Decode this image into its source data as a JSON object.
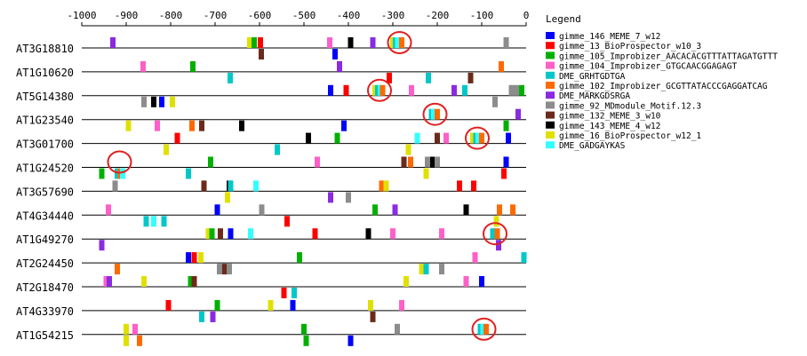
{
  "chart_data": {
    "type": "motif-map",
    "x_axis": {
      "range": [
        -1000,
        0
      ],
      "ticks": [
        -1000,
        -900,
        -800,
        -700,
        -600,
        -500,
        -400,
        -300,
        -200,
        -100,
        0
      ],
      "tick_labels": [
        "-1000",
        "-900",
        "-800",
        "-700",
        "-600",
        "-500",
        "-400",
        "-300",
        "-200",
        "-100",
        "0"
      ]
    },
    "legend": {
      "title": "Legend",
      "items": [
        {
          "id": "m146",
          "label": "gimme_146_MEME_7_w12",
          "color": "#0000ff"
        },
        {
          "id": "m13",
          "label": "gimme_13_BioProspector_w10_3",
          "color": "#ff0000"
        },
        {
          "id": "m105",
          "label": "gimme_105_Improbizer_AACACACGTTTATTAGATGTTT",
          "color": "#00b000"
        },
        {
          "id": "m104",
          "label": "gimme_104_Improbizer_GTGCAACGGAGAGT",
          "color": "#ff5fc8"
        },
        {
          "id": "grht",
          "label": "DME_GRHTGDTGA",
          "color": "#00c8c8"
        },
        {
          "id": "m102",
          "label": "gimme_102_Improbizer_GCGTTATACCCGAGGATCAG",
          "color": "#ff6a00"
        },
        {
          "id": "markg",
          "label": "DME_MARKGDSRGA",
          "color": "#8a2be2"
        },
        {
          "id": "m92",
          "label": "gimme_92_MDmodule_Motif.12.3",
          "color": "#8c8c8c"
        },
        {
          "id": "m132",
          "label": "gimme_132_MEME_3_w10",
          "color": "#6b2a1a"
        },
        {
          "id": "m143",
          "label": "gimme_143_MEME_4_w12",
          "color": "#000000"
        },
        {
          "id": "m16",
          "label": "gimme_16_BioProspector_w12_1",
          "color": "#e0e000"
        },
        {
          "id": "gadg",
          "label": "DME_GADGAYKAS",
          "color": "#33ffff"
        }
      ]
    },
    "genes": [
      {
        "name": "AT3G18810",
        "circles": [
          -285
        ],
        "upper": [
          [
            "markg",
            -930
          ],
          [
            "m16",
            -622
          ],
          [
            "m105",
            -612
          ],
          [
            "m13",
            -598
          ],
          [
            "m104",
            -442
          ],
          [
            "m143",
            -395
          ],
          [
            "markg",
            -345
          ],
          [
            "m16",
            -300
          ],
          [
            "grht",
            -294
          ],
          [
            "gadg",
            -289
          ],
          [
            "m102",
            -280
          ],
          [
            "m92",
            -45
          ]
        ],
        "lower": [
          [
            "m132",
            -596
          ],
          [
            "m146",
            -430
          ]
        ]
      },
      {
        "name": "AT1G10620",
        "circles": [],
        "upper": [
          [
            "m104",
            -862
          ],
          [
            "m105",
            -750
          ],
          [
            "markg",
            -420
          ],
          [
            "m102",
            -56
          ]
        ],
        "lower": [
          [
            "grht",
            -666
          ],
          [
            "m13",
            -308
          ],
          [
            "grht",
            -220
          ],
          [
            "m132",
            -125
          ]
        ]
      },
      {
        "name": "AT5G14380",
        "circles": [
          -330
        ],
        "upper": [
          [
            "m146",
            -440
          ],
          [
            "m13",
            -405
          ],
          [
            "m16",
            -340
          ],
          [
            "grht",
            -334
          ],
          [
            "gadg",
            -328
          ],
          [
            "m102",
            -323
          ],
          [
            "m104",
            -258
          ],
          [
            "markg",
            -162
          ],
          [
            "grht",
            -138
          ],
          [
            "m92",
            -33
          ],
          [
            "m92",
            -22
          ],
          [
            "m105",
            -10
          ]
        ],
        "lower": [
          [
            "m92",
            -860
          ],
          [
            "m143",
            -838
          ],
          [
            "m146",
            -820
          ],
          [
            "m16",
            -796
          ],
          [
            "m92",
            -70
          ]
        ]
      },
      {
        "name": "AT1G23540",
        "circles": [
          -205
        ],
        "upper": [
          [
            "grht",
            -213
          ],
          [
            "gadg",
            -208
          ],
          [
            "m102",
            -200
          ],
          [
            "markg",
            -18
          ]
        ],
        "lower": [
          [
            "m104",
            -830
          ],
          [
            "m102",
            -752
          ],
          [
            "m132",
            -730
          ],
          [
            "m16",
            -895
          ],
          [
            "m143",
            -640
          ],
          [
            "m146",
            -410
          ],
          [
            "m105",
            -45
          ]
        ]
      },
      {
        "name": "AT3G01700",
        "circles": [
          -110
        ],
        "upper": [
          [
            "m13",
            -785
          ],
          [
            "m143",
            -490
          ],
          [
            "m105",
            -425
          ],
          [
            "gadg",
            -245
          ],
          [
            "m132",
            -200
          ],
          [
            "m104",
            -180
          ],
          [
            "m16",
            -120
          ],
          [
            "grht",
            -113
          ],
          [
            "gadg",
            -108
          ],
          [
            "m102",
            -100
          ],
          [
            "m146",
            -40
          ]
        ],
        "lower": [
          [
            "m16",
            -810
          ],
          [
            "grht",
            -560
          ],
          [
            "m16",
            -265
          ]
        ]
      },
      {
        "name": "AT1G24520",
        "circles": [
          -915
        ],
        "upper": [
          [
            "m105",
            -710
          ],
          [
            "m104",
            -470
          ],
          [
            "m132",
            -275
          ],
          [
            "m102",
            -260
          ],
          [
            "m92",
            -222
          ],
          [
            "m143",
            -210
          ],
          [
            "m92",
            -200
          ],
          [
            "m146",
            -45
          ]
        ],
        "lower": [
          [
            "m105",
            -955
          ],
          [
            "grht",
            -920
          ],
          [
            "m102",
            -913
          ],
          [
            "gadg",
            -908
          ],
          [
            "grht",
            -760
          ],
          [
            "m16",
            -225
          ],
          [
            "m13",
            -50
          ]
        ]
      },
      {
        "name": "AT3G57690",
        "circles": [],
        "upper": [
          [
            "m92",
            -925
          ],
          [
            "m132",
            -725
          ],
          [
            "m143",
            -668
          ],
          [
            "grht",
            -665
          ],
          [
            "gadg",
            -608
          ],
          [
            "m102",
            -325
          ],
          [
            "m16",
            -315
          ],
          [
            "m13",
            -150
          ],
          [
            "m13",
            -118
          ]
        ],
        "lower": [
          [
            "m16",
            -672
          ],
          [
            "markg",
            -440
          ],
          [
            "m92",
            -400
          ]
        ]
      },
      {
        "name": "AT4G34440",
        "circles": [],
        "upper": [
          [
            "m104",
            -940
          ],
          [
            "m146",
            -695
          ],
          [
            "m92",
            -595
          ],
          [
            "m105",
            -340
          ],
          [
            "markg",
            -295
          ],
          [
            "m143",
            -135
          ],
          [
            "m102",
            -60
          ],
          [
            "m102",
            -30
          ]
        ],
        "lower": [
          [
            "grht",
            -855
          ],
          [
            "gadg",
            -838
          ],
          [
            "grht",
            -815
          ],
          [
            "m13",
            -538
          ],
          [
            "m16",
            -67
          ]
        ]
      },
      {
        "name": "AT1G49270",
        "circles": [
          -70
        ],
        "upper": [
          [
            "m16",
            -715
          ],
          [
            "m105",
            -707
          ],
          [
            "m132",
            -688
          ],
          [
            "m146",
            -665
          ],
          [
            "gadg",
            -620
          ],
          [
            "m13",
            -475
          ],
          [
            "m143",
            -355
          ],
          [
            "m104",
            -300
          ],
          [
            "m104",
            -190
          ],
          [
            "grht",
            -75
          ],
          [
            "m102",
            -65
          ]
        ],
        "lower": [
          [
            "markg",
            -955
          ],
          [
            "markg",
            -62
          ]
        ]
      },
      {
        "name": "AT2G24450",
        "circles": [],
        "upper": [
          [
            "m146",
            -760
          ],
          [
            "m13",
            -747
          ],
          [
            "m16",
            -732
          ],
          [
            "m105",
            -510
          ],
          [
            "m104",
            -115
          ],
          [
            "grht",
            -5
          ]
        ],
        "lower": [
          [
            "m102",
            -920
          ],
          [
            "m92",
            -690
          ],
          [
            "m132",
            -678
          ],
          [
            "m92",
            -668
          ],
          [
            "m16",
            -235
          ],
          [
            "grht",
            -225
          ],
          [
            "m92",
            -190
          ]
        ]
      },
      {
        "name": "AT2G18470",
        "circles": [],
        "upper": [
          [
            "m104",
            -945
          ],
          [
            "markg",
            -938
          ],
          [
            "m16",
            -860
          ],
          [
            "m105",
            -755
          ],
          [
            "m132",
            -747
          ],
          [
            "m16",
            -270
          ],
          [
            "m104",
            -135
          ],
          [
            "m146",
            -100
          ]
        ],
        "lower": [
          [
            "m13",
            -545
          ],
          [
            "grht",
            -522
          ]
        ]
      },
      {
        "name": "AT4G33970",
        "circles": [],
        "upper": [
          [
            "m13",
            -805
          ],
          [
            "m105",
            -695
          ],
          [
            "m16",
            -575
          ],
          [
            "m146",
            -525
          ],
          [
            "m16",
            -350
          ],
          [
            "m104",
            -280
          ]
        ],
        "lower": [
          [
            "grht",
            -730
          ],
          [
            "markg",
            -705
          ],
          [
            "m132",
            -345
          ]
        ]
      },
      {
        "name": "AT1G54215",
        "circles": [
          -95
        ],
        "upper": [
          [
            "m16",
            -900
          ],
          [
            "m104",
            -880
          ],
          [
            "m105",
            -500
          ],
          [
            "m92",
            -290
          ],
          [
            "grht",
            -103
          ],
          [
            "gadg",
            -97
          ],
          [
            "m102",
            -90
          ]
        ],
        "lower": [
          [
            "m16",
            -900
          ],
          [
            "m102",
            -870
          ],
          [
            "m105",
            -495
          ],
          [
            "m146",
            -395
          ]
        ]
      }
    ]
  }
}
